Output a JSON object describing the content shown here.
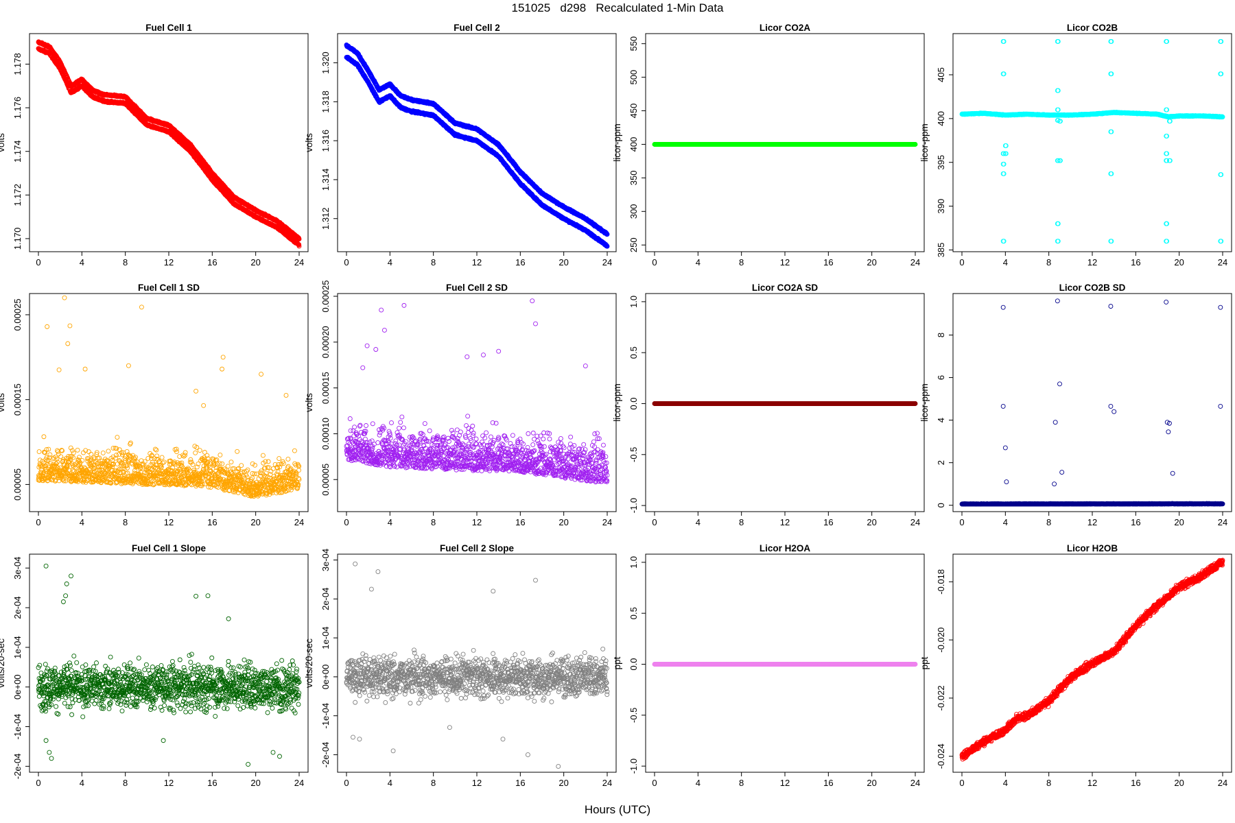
{
  "title": "151025   d298   Recalculated 1-Min Data",
  "xlabel": "Hours (UTC)",
  "chart_data": [
    {
      "type": "scatter",
      "title": "Fuel Cell 1",
      "ylabel": "volts",
      "color": "#ff0000",
      "xlim": [
        0,
        24
      ],
      "xticks": [
        0,
        4,
        8,
        12,
        16,
        20,
        24
      ],
      "ylim": [
        1.1694,
        1.1794
      ],
      "yticks": [
        1.17,
        1.172,
        1.174,
        1.176,
        1.178
      ],
      "ytick_labels": [
        "1.170",
        "1.172",
        "1.174",
        "1.176",
        "1.178"
      ],
      "series": [
        {
          "x": [
            0,
            1,
            2,
            3,
            4,
            5,
            6,
            8,
            10,
            12,
            14,
            16,
            18,
            20,
            22,
            24
          ],
          "y": [
            1.1787,
            1.1785,
            1.1778,
            1.1767,
            1.177,
            1.1765,
            1.1763,
            1.1762,
            1.1752,
            1.1749,
            1.174,
            1.1727,
            1.1716,
            1.171,
            1.1705,
            1.1697
          ]
        },
        {
          "x": [
            0,
            1,
            2,
            3,
            4,
            5,
            6,
            8,
            10,
            12,
            14,
            16,
            18,
            20,
            22,
            24
          ],
          "y": [
            1.179,
            1.1788,
            1.1781,
            1.177,
            1.1773,
            1.1768,
            1.1766,
            1.1765,
            1.1755,
            1.1752,
            1.1743,
            1.173,
            1.1719,
            1.1713,
            1.1708,
            1.17
          ]
        }
      ]
    },
    {
      "type": "scatter",
      "title": "Fuel Cell 2",
      "ylabel": "volts",
      "color": "#0000ff",
      "xlim": [
        0,
        24
      ],
      "xticks": [
        0,
        4,
        8,
        12,
        16,
        20,
        24
      ],
      "ylim": [
        1.3103,
        1.3215
      ],
      "yticks": [
        1.312,
        1.314,
        1.316,
        1.318,
        1.32
      ],
      "ytick_labels": [
        "1.312",
        "1.314",
        "1.316",
        "1.318",
        "1.320"
      ],
      "series": [
        {
          "x": [
            0,
            1,
            2,
            3,
            4,
            5,
            6,
            8,
            10,
            12,
            14,
            16,
            18,
            20,
            22,
            24
          ],
          "y": [
            1.3203,
            1.3199,
            1.319,
            1.318,
            1.3183,
            1.3177,
            1.3175,
            1.3173,
            1.3163,
            1.316,
            1.3152,
            1.3138,
            1.3127,
            1.312,
            1.3114,
            1.3106
          ]
        },
        {
          "x": [
            0,
            1,
            2,
            3,
            4,
            5,
            6,
            8,
            10,
            12,
            14,
            16,
            18,
            20,
            22,
            24
          ],
          "y": [
            1.3209,
            1.3205,
            1.3196,
            1.3186,
            1.3189,
            1.3183,
            1.3181,
            1.3179,
            1.3169,
            1.3166,
            1.3158,
            1.3144,
            1.3133,
            1.3126,
            1.312,
            1.3112
          ]
        }
      ]
    },
    {
      "type": "scatter",
      "title": "Licor CO2A",
      "ylabel": "licor-ppm",
      "color": "#00ff00",
      "xlim": [
        0,
        24
      ],
      "xticks": [
        0,
        4,
        8,
        12,
        16,
        20,
        24
      ],
      "ylim": [
        240,
        565
      ],
      "yticks": [
        250,
        300,
        350,
        400,
        450,
        500,
        550
      ],
      "ytick_labels": [
        "250",
        "300",
        "350",
        "400",
        "450",
        "500",
        "550"
      ],
      "series": [
        {
          "x": [
            0,
            24
          ],
          "y": [
            400,
            400
          ]
        }
      ]
    },
    {
      "type": "scatter",
      "title": "Licor CO2B",
      "ylabel": "licor-ppm",
      "color": "#00ffff",
      "xlim": [
        0,
        24
      ],
      "xticks": [
        0,
        4,
        8,
        12,
        16,
        20,
        24
      ],
      "ylim": [
        384.8,
        409.7
      ],
      "yticks": [
        385,
        390,
        395,
        400,
        405
      ],
      "ytick_labels": [
        "385",
        "390",
        "395",
        "400",
        "405"
      ],
      "series": [
        {
          "x": [
            0,
            2,
            4,
            6,
            8,
            10,
            12,
            14,
            16,
            18,
            19,
            20,
            22,
            24
          ],
          "y": [
            400.5,
            400.6,
            400.4,
            400.5,
            400.4,
            400.4,
            400.5,
            400.7,
            400.6,
            400.5,
            400.2,
            400.3,
            400.3,
            400.2
          ]
        }
      ],
      "spikes": [
        {
          "x": 3.8,
          "y": [
            408.8,
            405.1,
            396.0,
            394.8,
            393.7,
            386.0
          ]
        },
        {
          "x": 4.0,
          "y": [
            396.9,
            396.0
          ]
        },
        {
          "x": 8.8,
          "y": [
            408.8,
            403.2,
            401.0,
            399.8,
            395.2,
            388.0,
            386.0
          ]
        },
        {
          "x": 9.0,
          "y": [
            395.2,
            399.7
          ]
        },
        {
          "x": 13.7,
          "y": [
            408.8,
            405.1,
            398.5,
            393.7,
            386.0
          ]
        },
        {
          "x": 18.8,
          "y": [
            408.8,
            401.0,
            398.0,
            396.0,
            395.2,
            388.0,
            386.0
          ]
        },
        {
          "x": 19.1,
          "y": [
            399.7,
            395.2
          ]
        },
        {
          "x": 23.8,
          "y": [
            408.8,
            405.1,
            393.6,
            386.0
          ]
        }
      ]
    },
    {
      "type": "scatter",
      "title": "Fuel Cell 1 SD",
      "ylabel": "volts",
      "color": "#ffa500",
      "xlim": [
        0,
        24
      ],
      "xticks": [
        0,
        4,
        8,
        12,
        16,
        20,
        24
      ],
      "ylim": [
        1.8e-05,
        0.000275
      ],
      "yticks": [
        5e-05,
        0.00015,
        0.00025
      ],
      "ytick_labels": [
        "0.00005",
        "0.00015",
        "0.00025"
      ],
      "series": [
        {
          "x": [
            0,
            4,
            8,
            12,
            16,
            20,
            24
          ],
          "y": [
            7e-05,
            6.8e-05,
            6.6e-05,
            6.4e-05,
            6.2e-05,
            5e-05,
            6e-05
          ]
        }
      ],
      "spread": 2.8e-05,
      "outliers": [
        [
          0.8,
          0.000236
        ],
        [
          2.4,
          0.00027
        ],
        [
          2.9,
          0.000237
        ],
        [
          2.7,
          0.000216
        ],
        [
          9.5,
          0.000259
        ],
        [
          8.3,
          0.00019
        ],
        [
          1.9,
          0.000185
        ],
        [
          4.3,
          0.000186
        ],
        [
          14.5,
          0.00016
        ],
        [
          17.0,
          0.0002
        ],
        [
          16.9,
          0.000186
        ],
        [
          20.5,
          0.00018
        ],
        [
          22.8,
          0.000155
        ],
        [
          15.2,
          0.000143
        ]
      ]
    },
    {
      "type": "scatter",
      "title": "Fuel Cell 2 SD",
      "ylabel": "volts",
      "color": "#a020f0",
      "xlim": [
        0,
        24
      ],
      "xticks": [
        0,
        4,
        8,
        12,
        16,
        20,
        24
      ],
      "ylim": [
        1.5e-05,
        0.000253
      ],
      "yticks": [
        5e-05,
        0.0001,
        0.00015,
        0.0002,
        0.00025
      ],
      "ytick_labels": [
        "0.00005",
        "0.00010",
        "0.00015",
        "0.00020",
        "0.00025"
      ],
      "series": [
        {
          "x": [
            0,
            4,
            8,
            12,
            16,
            20,
            24
          ],
          "y": [
            8.8e-05,
            8e-05,
            7.8e-05,
            7.6e-05,
            7.5e-05,
            6.8e-05,
            6.2e-05
          ]
        }
      ],
      "spread": 3e-05,
      "outliers": [
        [
          5.3,
          0.00024
        ],
        [
          3.2,
          0.000235
        ],
        [
          17.1,
          0.000245
        ],
        [
          3.5,
          0.000213
        ],
        [
          1.9,
          0.000196
        ],
        [
          2.7,
          0.000192
        ],
        [
          17.4,
          0.00022
        ],
        [
          14.0,
          0.00019
        ],
        [
          11.1,
          0.000184
        ],
        [
          12.6,
          0.000186
        ],
        [
          22.0,
          0.000174
        ],
        [
          1.5,
          0.000172
        ]
      ]
    },
    {
      "type": "scatter",
      "title": "Licor CO2A SD",
      "ylabel": "licor-ppm",
      "color": "#8b0000",
      "xlim": [
        0,
        24
      ],
      "xticks": [
        0,
        4,
        8,
        12,
        16,
        20,
        24
      ],
      "ylim": [
        -1.06,
        1.08
      ],
      "yticks": [
        -1.0,
        -0.5,
        0.0,
        0.5,
        1.0
      ],
      "ytick_labels": [
        "-1.0",
        "-0.5",
        "0.0",
        "0.5",
        "1.0"
      ],
      "series": [
        {
          "x": [
            0,
            24
          ],
          "y": [
            0,
            0
          ]
        }
      ]
    },
    {
      "type": "scatter",
      "title": "Licor CO2B SD",
      "ylabel": "licor-ppm",
      "color": "#00008b",
      "xlim": [
        0,
        24
      ],
      "xticks": [
        0,
        4,
        8,
        12,
        16,
        20,
        24
      ],
      "ylim": [
        -0.3,
        9.95
      ],
      "yticks": [
        0,
        2,
        4,
        6,
        8
      ],
      "ytick_labels": [
        "0",
        "2",
        "4",
        "6",
        "8"
      ],
      "series": [
        {
          "x": [
            0,
            24
          ],
          "y": [
            0.05,
            0.06
          ]
        }
      ],
      "outliers": [
        [
          3.8,
          9.3
        ],
        [
          3.8,
          4.65
        ],
        [
          4.0,
          2.7
        ],
        [
          4.1,
          1.1
        ],
        [
          8.8,
          9.6
        ],
        [
          9.0,
          5.7
        ],
        [
          8.6,
          3.9
        ],
        [
          9.2,
          1.55
        ],
        [
          8.5,
          1.0
        ],
        [
          13.7,
          9.35
        ],
        [
          13.7,
          4.65
        ],
        [
          14.0,
          4.4
        ],
        [
          18.8,
          9.55
        ],
        [
          18.9,
          3.9
        ],
        [
          19.1,
          3.85
        ],
        [
          19.0,
          3.45
        ],
        [
          19.4,
          1.5
        ],
        [
          23.8,
          9.3
        ],
        [
          23.8,
          4.65
        ]
      ]
    },
    {
      "type": "scatter",
      "title": "Fuel Cell 1 Slope",
      "ylabel": "volts/20-sec",
      "color": "#006400",
      "xlim": [
        0,
        24
      ],
      "xticks": [
        0,
        4,
        8,
        12,
        16,
        20,
        24
      ],
      "ylim": [
        -0.000215,
        0.000335
      ],
      "yticks": [
        -0.0002,
        -0.0001,
        0,
        0.0001,
        0.0002,
        0.0003
      ],
      "ytick_labels": [
        "-2e-04",
        "-1e-04",
        "0e+00",
        "1e-04",
        "2e-04",
        "3e-04"
      ],
      "series": [
        {
          "x": [
            0,
            24
          ],
          "y": [
            0.0,
            0.0
          ]
        }
      ],
      "spread": 5.5e-05,
      "outliers": [
        [
          0.7,
          0.000305
        ],
        [
          2.5,
          0.00023
        ],
        [
          2.3,
          0.000215
        ],
        [
          2.6,
          0.00026
        ],
        [
          3.0,
          0.00028
        ],
        [
          14.5,
          0.000229
        ],
        [
          15.6,
          0.00023
        ],
        [
          17.5,
          0.000172
        ],
        [
          0.7,
          -0.000135
        ],
        [
          1.0,
          -0.000165
        ],
        [
          1.2,
          -0.00018
        ],
        [
          19.3,
          -0.000195
        ],
        [
          22.2,
          -0.000175
        ],
        [
          21.6,
          -0.000165
        ],
        [
          11.5,
          -0.000135
        ]
      ]
    },
    {
      "type": "scatter",
      "title": "Fuel Cell 2 Slope",
      "ylabel": "volts/20-sec",
      "color": "#808080",
      "xlim": [
        0,
        24
      ],
      "xticks": [
        0,
        4,
        8,
        12,
        16,
        20,
        24
      ],
      "ylim": [
        -0.000245,
        0.000315
      ],
      "yticks": [
        -0.0002,
        -0.0001,
        0,
        0.0001,
        0.0002,
        0.0003
      ],
      "ytick_labels": [
        "-2e-04",
        "-1e-04",
        "0e+00",
        "1e-04",
        "2e-04",
        "3e-04"
      ],
      "series": [
        {
          "x": [
            0,
            24
          ],
          "y": [
            0.0,
            0.0
          ]
        }
      ],
      "spread": 5e-05,
      "outliers": [
        [
          0.8,
          0.00029
        ],
        [
          2.9,
          0.00027
        ],
        [
          2.3,
          0.000225
        ],
        [
          17.4,
          0.000248
        ],
        [
          13.5,
          0.00022
        ],
        [
          0.6,
          -0.000155
        ],
        [
          1.2,
          -0.00016
        ],
        [
          4.3,
          -0.00019
        ],
        [
          16.7,
          -0.0002
        ],
        [
          19.5,
          -0.00023
        ],
        [
          14.4,
          -0.00016
        ],
        [
          9.5,
          -0.00013
        ]
      ]
    },
    {
      "type": "scatter",
      "title": "Licor H2OA",
      "ylabel": "ppt",
      "color": "#ee82ee",
      "xlim": [
        0,
        24
      ],
      "xticks": [
        0,
        4,
        8,
        12,
        16,
        20,
        24
      ],
      "ylim": [
        -1.06,
        1.08
      ],
      "yticks": [
        -1.0,
        -0.5,
        0.0,
        0.5,
        1.0
      ],
      "ytick_labels": [
        "-1.0",
        "-0.5",
        "0.0",
        "0.5",
        "1.0"
      ],
      "series": [
        {
          "x": [
            0,
            24
          ],
          "y": [
            0,
            0
          ]
        }
      ]
    },
    {
      "type": "scatter",
      "title": "Licor H2OB",
      "ylabel": "ppt",
      "color": "#ff0000",
      "xlim": [
        0,
        24
      ],
      "xticks": [
        0,
        4,
        8,
        12,
        16,
        20,
        24
      ],
      "ylim": [
        -0.02455,
        -0.01705
      ],
      "yticks": [
        -0.024,
        -0.022,
        -0.02,
        -0.018
      ],
      "ytick_labels": [
        "-0.024",
        "-0.022",
        "-0.020",
        "-0.018"
      ],
      "series": [
        {
          "x": [
            0,
            2,
            4,
            5,
            6,
            8,
            10,
            12,
            14,
            16,
            18,
            20,
            22,
            24
          ],
          "y": [
            -0.024,
            -0.0235,
            -0.0231,
            -0.0227,
            -0.0226,
            -0.0221,
            -0.0213,
            -0.0208,
            -0.0204,
            -0.0195,
            -0.0188,
            -0.0182,
            -0.0178,
            -0.0173
          ]
        }
      ],
      "spread": 0.00012
    }
  ]
}
